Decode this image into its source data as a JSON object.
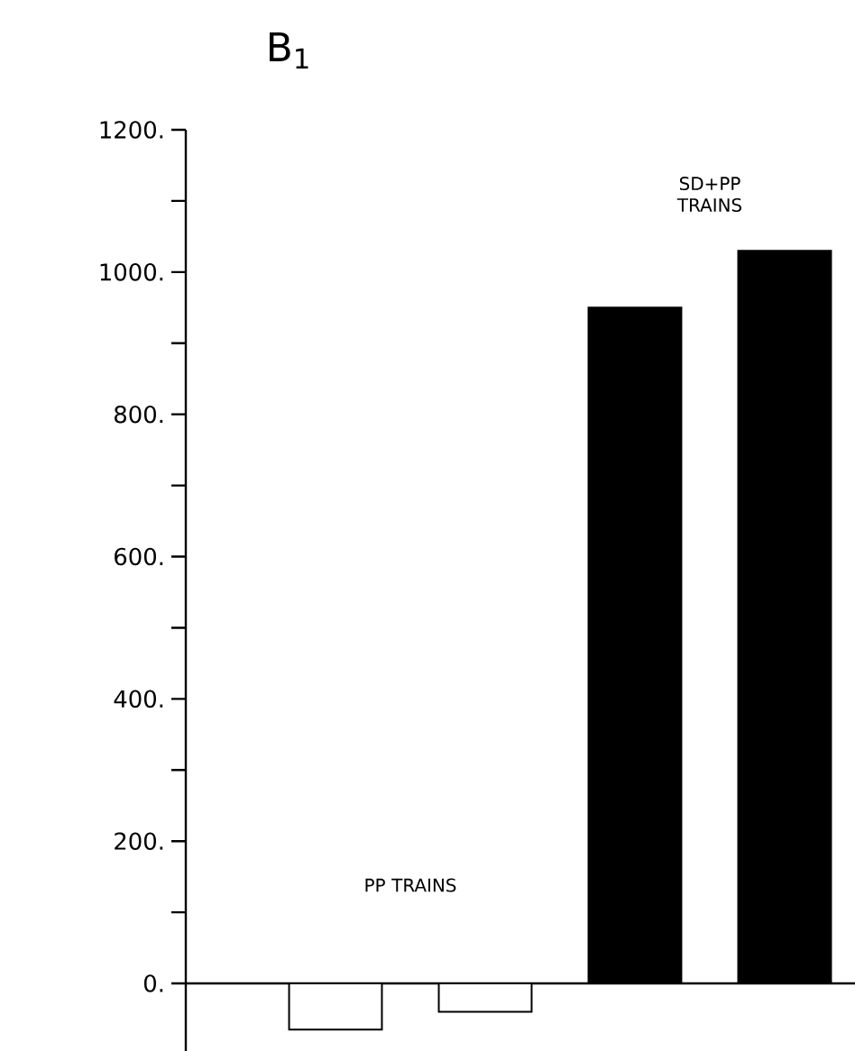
{
  "chart_data": {
    "type": "bar",
    "title": "B$_{1}$",
    "categories": [
      null,
      null,
      null,
      null
    ],
    "values": [
      -65,
      -40,
      950,
      1030
    ],
    "colors": [
      "#ffffff",
      "#ffffff",
      "#000000",
      "#000000"
    ],
    "annotations": [
      "PP TRAINS",
      "SD+PP TRAINS"
    ],
    "ylim": [
      -95,
      1200
    ],
    "yticks": [
      {
        "value": 0,
        "label": "0."
      },
      {
        "value": 100,
        "label": null
      },
      {
        "value": 200,
        "label": "200."
      },
      {
        "value": 300,
        "label": null
      },
      {
        "value": 400,
        "label": "400."
      },
      {
        "value": 500,
        "label": null
      },
      {
        "value": 600,
        "label": "600."
      },
      {
        "value": 700,
        "label": null
      },
      {
        "value": 800,
        "label": "800."
      },
      {
        "value": 900,
        "label": null
      },
      {
        "value": 1000,
        "label": "1000."
      },
      {
        "value": 1100,
        "label": null
      },
      {
        "value": 1200,
        "label": "1200."
      }
    ],
    "tick_labels": "y"
  }
}
